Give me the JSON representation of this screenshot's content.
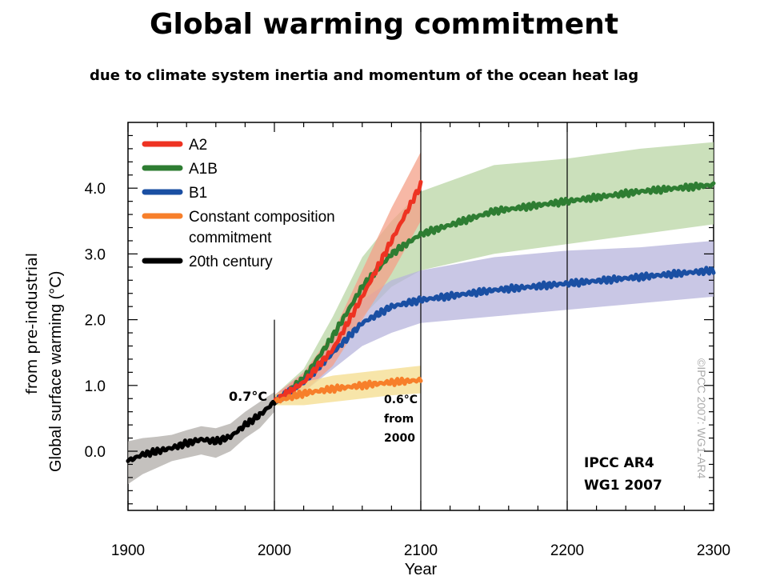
{
  "title": "Global warming commitment",
  "subtitle": "due to climate system inertia and momentum  of the ocean heat lag",
  "ylabel_suffix": "from pre-industrial",
  "chart_data": {
    "type": "line",
    "xlabel": "Year",
    "ylabel": "Global surface warming (°C)",
    "xlim": [
      1900,
      2300
    ],
    "ylim": [
      -0.9,
      5.0
    ],
    "xticks": [
      1900,
      2000,
      2100,
      2200,
      2300
    ],
    "yticks": [
      0.0,
      1.0,
      2.0,
      3.0,
      4.0
    ],
    "ytick_labels": [
      "0.0",
      "1.0",
      "2.0",
      "3.0",
      "4.0"
    ],
    "vlines": [
      2000,
      2100,
      2200
    ],
    "legend_position": "top-left",
    "watermark": "©IPCC 2007: WG1-AR4",
    "series": [
      {
        "name": "A2",
        "color": "#ee3322",
        "band_color": "#f4a088",
        "x": [
          2000,
          2020,
          2040,
          2060,
          2080,
          2100
        ],
        "values": [
          0.75,
          1.05,
          1.55,
          2.35,
          3.2,
          4.05
        ],
        "lower": [
          0.7,
          0.9,
          1.3,
          2.0,
          2.7,
          3.5
        ],
        "upper": [
          0.85,
          1.2,
          1.8,
          2.75,
          3.7,
          4.55
        ]
      },
      {
        "name": "A1B",
        "color": "#2e7d32",
        "band_color": "#b9d6a4",
        "x": [
          2000,
          2020,
          2040,
          2060,
          2080,
          2100,
          2150,
          2200,
          2250,
          2300
        ],
        "values": [
          0.75,
          1.1,
          1.75,
          2.5,
          3.0,
          3.3,
          3.65,
          3.8,
          3.95,
          4.05
        ],
        "lower": [
          0.7,
          0.95,
          1.45,
          2.05,
          2.5,
          2.75,
          3.0,
          3.15,
          3.3,
          3.45
        ],
        "upper": [
          0.85,
          1.25,
          2.05,
          2.95,
          3.5,
          3.95,
          4.35,
          4.45,
          4.6,
          4.7
        ]
      },
      {
        "name": "B1",
        "color": "#1a4fa3",
        "band_color": "#b7b4dc",
        "x": [
          2000,
          2020,
          2040,
          2060,
          2080,
          2100,
          2150,
          2200,
          2250,
          2300
        ],
        "values": [
          0.75,
          1.05,
          1.5,
          1.95,
          2.2,
          2.3,
          2.45,
          2.55,
          2.65,
          2.75
        ],
        "lower": [
          0.7,
          0.9,
          1.25,
          1.6,
          1.8,
          1.95,
          2.05,
          2.15,
          2.25,
          2.35
        ],
        "upper": [
          0.85,
          1.2,
          1.75,
          2.3,
          2.6,
          2.75,
          2.95,
          3.05,
          3.1,
          3.2
        ]
      },
      {
        "name": "Constant composition commitment",
        "color": "#f77f2a",
        "band_color": "#f4dc8c",
        "x": [
          2000,
          2020,
          2040,
          2060,
          2080,
          2100
        ],
        "values": [
          0.75,
          0.88,
          0.95,
          1.0,
          1.05,
          1.08
        ],
        "lower": [
          0.7,
          0.7,
          0.75,
          0.8,
          0.85,
          0.88
        ],
        "upper": [
          0.85,
          1.05,
          1.15,
          1.2,
          1.25,
          1.3
        ]
      },
      {
        "name": "20th century",
        "color": "#000000",
        "band_color": "#b0aca8",
        "x": [
          1900,
          1910,
          1920,
          1930,
          1940,
          1950,
          1960,
          1970,
          1980,
          1990,
          2000
        ],
        "values": [
          -0.15,
          -0.05,
          0.0,
          0.05,
          0.12,
          0.18,
          0.15,
          0.22,
          0.4,
          0.55,
          0.75
        ],
        "lower": [
          -0.5,
          -0.35,
          -0.25,
          -0.15,
          -0.1,
          -0.05,
          -0.1,
          0.0,
          0.2,
          0.35,
          0.6
        ],
        "upper": [
          0.15,
          0.2,
          0.22,
          0.25,
          0.32,
          0.38,
          0.35,
          0.42,
          0.6,
          0.75,
          0.9
        ]
      }
    ],
    "legend_entries": [
      {
        "line1": "A2",
        "line2": "",
        "color": "#ee3322"
      },
      {
        "line1": "A1B",
        "line2": "",
        "color": "#2e7d32"
      },
      {
        "line1": "B1",
        "line2": "",
        "color": "#1a4fa3"
      },
      {
        "line1": "Constant composition",
        "line2": "commitment",
        "color": "#f77f2a"
      },
      {
        "line1": "20th century",
        "line2": "",
        "color": "#000000"
      }
    ],
    "annotations": {
      "start_value": "0.7°C",
      "commit_value": "0.6°C",
      "commit_from": "from",
      "commit_year": "2000",
      "source_line1": "IPCC AR4",
      "source_line2": "WG1 2007"
    }
  }
}
